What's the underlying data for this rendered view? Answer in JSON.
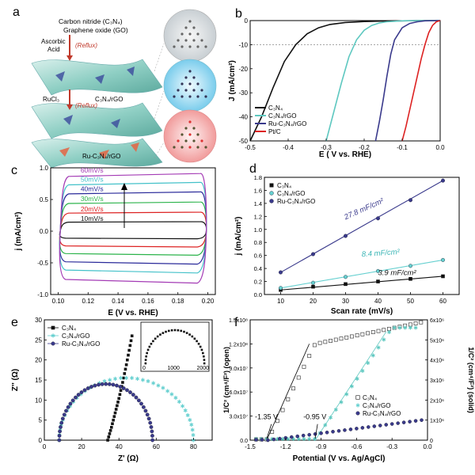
{
  "panels": {
    "a": {
      "label": "a",
      "top_text_1": "Carbon nitride (C₃N₄)",
      "top_text_2": "Graphene oxide (GO)",
      "reagent_1": "Ascorbic",
      "reagent_1b": "Acid",
      "reflux_1": "(Reflux)",
      "product_1": "C₃N₄/rGO",
      "reagent_2": "RuCl₃",
      "reflux_2": "(Reflux)",
      "product_2": "Ru-C₃N₄/rGO"
    },
    "b": {
      "label": "b"
    },
    "c": {
      "label": "c"
    },
    "d": {
      "label": "d"
    },
    "e": {
      "label": "e"
    },
    "f": {
      "label": "f"
    }
  },
  "chart_data": [
    {
      "id": "b",
      "type": "line",
      "xlabel": "E ( V vs. RHE)",
      "ylabel": "J (mA/cm²)",
      "xlim": [
        -0.5,
        0.0
      ],
      "ylim": [
        -50,
        0
      ],
      "xticks": [
        "-0.5",
        "-0.4",
        "-0.3",
        "-0.2",
        "-0.1",
        "0.0"
      ],
      "yticks": [
        "-50",
        "-40",
        "-30",
        "-20",
        "-10",
        "0"
      ],
      "reference_line_y": -10,
      "legend_position": "bottom-left",
      "series": [
        {
          "name": "C₃N₄",
          "color": "#111111",
          "x": [
            -0.5,
            -0.47,
            -0.44,
            -0.41,
            -0.38,
            -0.35,
            -0.32,
            -0.29,
            -0.25,
            -0.2,
            -0.15,
            -0.1,
            -0.05,
            0.0
          ],
          "y": [
            -50,
            -40,
            -28,
            -17,
            -10,
            -5.5,
            -3,
            -1.6,
            -0.8,
            -0.4,
            -0.2,
            -0.1,
            0,
            0
          ]
        },
        {
          "name": "C₃N₄/rGO",
          "color": "#5ec8c0",
          "x": [
            -0.3,
            -0.28,
            -0.26,
            -0.24,
            -0.22,
            -0.2,
            -0.18,
            -0.16,
            -0.14,
            -0.1,
            -0.05,
            0.0
          ],
          "y": [
            -50,
            -38,
            -26,
            -15,
            -8,
            -4,
            -2,
            -1,
            -0.5,
            -0.1,
            0,
            0
          ]
        },
        {
          "name": "Ru-C₃N₄/rGO",
          "color": "#3a3a8c",
          "x": [
            -0.17,
            -0.16,
            -0.15,
            -0.14,
            -0.13,
            -0.12,
            -0.1,
            -0.08,
            -0.06,
            -0.04,
            0.0
          ],
          "y": [
            -50,
            -42,
            -33,
            -23,
            -14,
            -8,
            -3,
            -1.2,
            -0.5,
            -0.1,
            0
          ]
        },
        {
          "name": "Pt/C",
          "color": "#dd2222",
          "x": [
            -0.1,
            -0.09,
            -0.08,
            -0.07,
            -0.06,
            -0.05,
            -0.04,
            -0.03,
            -0.02,
            -0.01,
            0.0
          ],
          "y": [
            -50,
            -44,
            -37,
            -30,
            -23,
            -16,
            -10,
            -5,
            -2,
            -0.5,
            0
          ]
        }
      ]
    },
    {
      "id": "c",
      "type": "line",
      "xlabel": "E (V vs. RHE)",
      "ylabel": "j (mA/cm²)",
      "xlim": [
        0.095,
        0.205
      ],
      "ylim": [
        -1.0,
        1.0
      ],
      "xticks": [
        "0.10",
        "0.12",
        "0.14",
        "0.16",
        "0.18",
        "0.20"
      ],
      "yticks": [
        "-1.0",
        "-0.5",
        "0.0",
        "0.5",
        "1.0"
      ],
      "annotation_arrow": "up",
      "series": [
        {
          "name": "10mV/s",
          "color": "#111111",
          "upper": 0.15,
          "lower": -0.12
        },
        {
          "name": "20mV/s",
          "color": "#dd2222",
          "upper": 0.3,
          "lower": -0.25
        },
        {
          "name": "30mV/s",
          "color": "#2bb34a",
          "upper": 0.46,
          "lower": -0.38
        },
        {
          "name": "40mV/s",
          "color": "#2a2a9a",
          "upper": 0.62,
          "lower": -0.52
        },
        {
          "name": "50mV/s",
          "color": "#43c1c9",
          "upper": 0.77,
          "lower": -0.66
        },
        {
          "name": "60mV/s",
          "color": "#a43bb5",
          "upper": 0.91,
          "lower": -0.82
        }
      ]
    },
    {
      "id": "d",
      "type": "scatter",
      "xlabel": "Scan rate (mV/s)",
      "ylabel": "j (mA/cm²)",
      "xlim": [
        5,
        65
      ],
      "ylim": [
        0.0,
        1.8
      ],
      "xticks": [
        "10",
        "20",
        "30",
        "40",
        "50",
        "60"
      ],
      "yticks": [
        "0.0",
        "0.2",
        "0.4",
        "0.6",
        "0.8",
        "1.0",
        "1.2",
        "1.4",
        "1.6",
        "1.8"
      ],
      "x": [
        10,
        20,
        30,
        40,
        50,
        60
      ],
      "legend_position": "top-left",
      "series": [
        {
          "name": "C₃N₄",
          "color": "#111111",
          "marker": "square",
          "values": [
            0.07,
            0.12,
            0.16,
            0.2,
            0.24,
            0.28
          ],
          "fit_label": "3.9 mF/cm²"
        },
        {
          "name": "C₃N₄/rGO",
          "color": "#66d0d0",
          "marker": "circle",
          "values": [
            0.1,
            0.18,
            0.27,
            0.36,
            0.44,
            0.53
          ],
          "fit_label": "8.4 mF/cm²"
        },
        {
          "name": "Ru-C₃N₄/rGO",
          "color": "#3a3a8c",
          "marker": "circle",
          "values": [
            0.34,
            0.62,
            0.9,
            1.17,
            1.45,
            1.75
          ],
          "fit_label": "27.8 mF/cm²"
        }
      ]
    },
    {
      "id": "e",
      "type": "scatter",
      "xlabel": "Z' (Ω)",
      "ylabel": "Z'' (Ω)",
      "xlim": [
        0,
        90
      ],
      "ylim": [
        0,
        30
      ],
      "xticks": [
        "0",
        "20",
        "40",
        "60",
        "80"
      ],
      "yticks": [
        "0",
        "5",
        "10",
        "15",
        "20",
        "25",
        "30"
      ],
      "legend_position": "top-left",
      "series": [
        {
          "name": "C₃N₄",
          "color": "#111111",
          "marker": "square",
          "x": [
            34,
            34.5,
            35,
            35.5,
            36,
            36.5,
            37,
            37.5,
            38,
            38.5,
            39,
            39.5,
            40,
            40.5,
            41,
            41.5,
            42,
            42.5,
            43,
            43.5,
            44,
            44.5,
            45,
            45.5,
            46,
            46.5,
            47
          ],
          "y": [
            0,
            0.8,
            1.6,
            2.4,
            3.2,
            4.1,
            5,
            5.9,
            6.8,
            7.7,
            8.6,
            9.5,
            10.4,
            11.4,
            12.4,
            13.4,
            14.4,
            15.5,
            16.6,
            17.7,
            18.8,
            20,
            21.2,
            22.4,
            23.6,
            24.8,
            26
          ]
        },
        {
          "name": "C₃N₄/rGO",
          "color": "#66d0d0",
          "marker": "star",
          "center": 44,
          "radius": 36,
          "height": 15.5
        },
        {
          "name": "Ru-C₃N₄/rGO",
          "color": "#3a3a8c",
          "marker": "circle",
          "center": 33,
          "radius": 25,
          "height": 14
        }
      ],
      "inset": {
        "xticks": [
          "0",
          "1000",
          "2000"
        ],
        "xlim": [
          0,
          2100
        ],
        "center": 1050,
        "radius": 1000
      }
    },
    {
      "id": "f",
      "type": "scatter",
      "xlabel": "Potential (V vs. Ag/AgCl)",
      "ylabel": "1/C² (cm⁴/F²) (open)",
      "ylabel_right": "1/C² (cm⁴/F²) (solid)",
      "xlim": [
        -1.5,
        0.0
      ],
      "ylim": [
        0,
        150000000.0
      ],
      "ylim_right": [
        0,
        6000000.0
      ],
      "xticks": [
        "-1.5",
        "-1.2",
        "-0.9",
        "-0.6",
        "-0.3",
        "0.0"
      ],
      "yticks": [
        "0.0",
        "3.0x10⁷",
        "6.0x10⁷",
        "9.0x10⁷",
        "1.2x10⁸",
        "1.5x10⁸"
      ],
      "yticks_right": [
        "0",
        "1x10⁶",
        "2x10⁶",
        "3x10⁶",
        "4x10⁶",
        "5x10⁶",
        "6x10⁶"
      ],
      "annotations": [
        "-1.35 V",
        "-0.95 V"
      ],
      "legend_position": "middle-right",
      "series": [
        {
          "name": "C₃N₄",
          "color": "#333333",
          "marker": "open-square"
        },
        {
          "name": "C₃N₄/rGO",
          "color": "#66d0d0",
          "marker": "star"
        },
        {
          "name": "Ru-C₃N₄/rGO",
          "color": "#3a3a8c",
          "marker": "circle"
        }
      ]
    }
  ]
}
